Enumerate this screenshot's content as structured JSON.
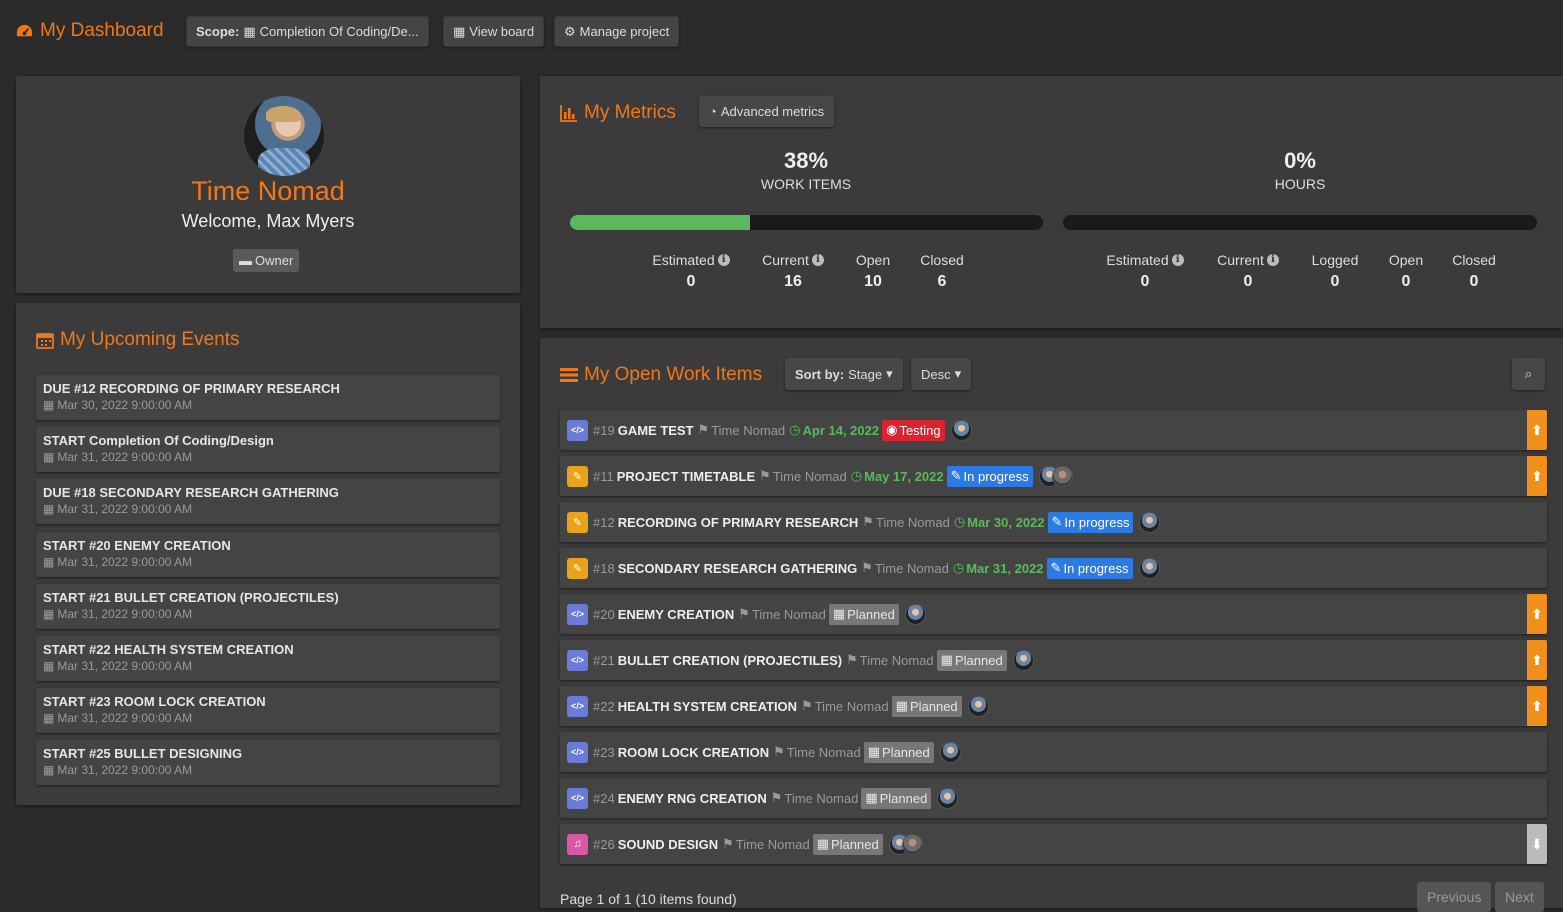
{
  "header": {
    "title": "My Dashboard",
    "scope_label": "Scope:",
    "scope_value": "Completion Of Coding/De...",
    "view_board": "View board",
    "manage_project": "Manage project"
  },
  "profile": {
    "name": "Time Nomad",
    "welcome": "Welcome, Max Myers",
    "role": "Owner"
  },
  "events": {
    "title": "My Upcoming Events",
    "items": [
      {
        "title": "DUE #12 RECORDING OF PRIMARY RESEARCH",
        "date": "Mar 30, 2022 9:00:00 AM"
      },
      {
        "title": "START Completion Of Coding/Design",
        "date": "Mar 31, 2022 9:00:00 AM"
      },
      {
        "title": "DUE #18 SECONDARY RESEARCH GATHERING",
        "date": "Mar 31, 2022 9:00:00 AM"
      },
      {
        "title": "START #20 ENEMY CREATION",
        "date": "Mar 31, 2022 9:00:00 AM"
      },
      {
        "title": "START #21 BULLET CREATION (PROJECTILES)",
        "date": "Mar 31, 2022 9:00:00 AM"
      },
      {
        "title": "START #22 HEALTH SYSTEM CREATION",
        "date": "Mar 31, 2022 9:00:00 AM"
      },
      {
        "title": "START #23 ROOM LOCK CREATION",
        "date": "Mar 31, 2022 9:00:00 AM"
      },
      {
        "title": "START #25 BULLET DESIGNING",
        "date": "Mar 31, 2022 9:00:00 AM"
      }
    ]
  },
  "metrics": {
    "title": "My Metrics",
    "advanced": "Advanced metrics",
    "work_items": {
      "percent": "38%",
      "label": "WORK ITEMS",
      "progress": 0.38,
      "stats": [
        {
          "label": "Estimated",
          "value": "0",
          "info": true
        },
        {
          "label": "Current",
          "value": "16",
          "info": true
        },
        {
          "label": "Open",
          "value": "10",
          "info": false
        },
        {
          "label": "Closed",
          "value": "6",
          "info": false
        }
      ]
    },
    "hours": {
      "percent": "0%",
      "label": "HOURS",
      "progress": 0,
      "stats": [
        {
          "label": "Estimated",
          "value": "0",
          "info": true
        },
        {
          "label": "Current",
          "value": "0",
          "info": true
        },
        {
          "label": "Logged",
          "value": "0",
          "info": false
        },
        {
          "label": "Open",
          "value": "0",
          "info": false
        },
        {
          "label": "Closed",
          "value": "0",
          "info": false
        }
      ]
    }
  },
  "workitems": {
    "title": "My Open Work Items",
    "sort_label": "Sort by:",
    "sort_value": "Stage",
    "order": "Desc",
    "items": [
      {
        "type": "code",
        "num": "#19",
        "title": "GAME TEST",
        "owner": "Time Nomad",
        "due": "Apr 14, 2022",
        "status": "Testing",
        "status_type": "testing",
        "avatars": 1,
        "priority": "up"
      },
      {
        "type": "edit",
        "num": "#11",
        "title": "PROJECT TIMETABLE",
        "owner": "Time Nomad",
        "due": "May 17, 2022",
        "status": "In progress",
        "status_type": "progress",
        "avatars": 2,
        "priority": "up"
      },
      {
        "type": "edit",
        "num": "#12",
        "title": "RECORDING OF PRIMARY RESEARCH",
        "owner": "Time Nomad",
        "due": "Mar 30, 2022",
        "status": "In progress",
        "status_type": "progress",
        "avatars": 1,
        "priority": ""
      },
      {
        "type": "edit",
        "num": "#18",
        "title": "SECONDARY RESEARCH GATHERING",
        "owner": "Time Nomad",
        "due": "Mar 31, 2022",
        "status": "In progress",
        "status_type": "progress",
        "avatars": 1,
        "priority": ""
      },
      {
        "type": "code",
        "num": "#20",
        "title": "ENEMY CREATION",
        "owner": "Time Nomad",
        "due": "",
        "status": "Planned",
        "status_type": "planned",
        "avatars": 1,
        "priority": "up"
      },
      {
        "type": "code",
        "num": "#21",
        "title": "BULLET CREATION (PROJECTILES)",
        "owner": "Time Nomad",
        "due": "",
        "status": "Planned",
        "status_type": "planned",
        "avatars": 1,
        "priority": "up"
      },
      {
        "type": "code",
        "num": "#22",
        "title": "HEALTH SYSTEM CREATION",
        "owner": "Time Nomad",
        "due": "",
        "status": "Planned",
        "status_type": "planned",
        "avatars": 1,
        "priority": "up"
      },
      {
        "type": "code",
        "num": "#23",
        "title": "ROOM LOCK CREATION",
        "owner": "Time Nomad",
        "due": "",
        "status": "Planned",
        "status_type": "planned",
        "avatars": 1,
        "priority": ""
      },
      {
        "type": "code",
        "num": "#24",
        "title": "ENEMY RNG CREATION",
        "owner": "Time Nomad",
        "due": "",
        "status": "Planned",
        "status_type": "planned",
        "avatars": 1,
        "priority": ""
      },
      {
        "type": "sound",
        "num": "#26",
        "title": "SOUND DESIGN",
        "owner": "Time Nomad",
        "due": "",
        "status": "Planned",
        "status_type": "planned",
        "avatars": 2,
        "priority": "down"
      }
    ],
    "pager_text": "Page 1 of 1 (10 items found)",
    "previous": "Previous",
    "next": "Next"
  }
}
